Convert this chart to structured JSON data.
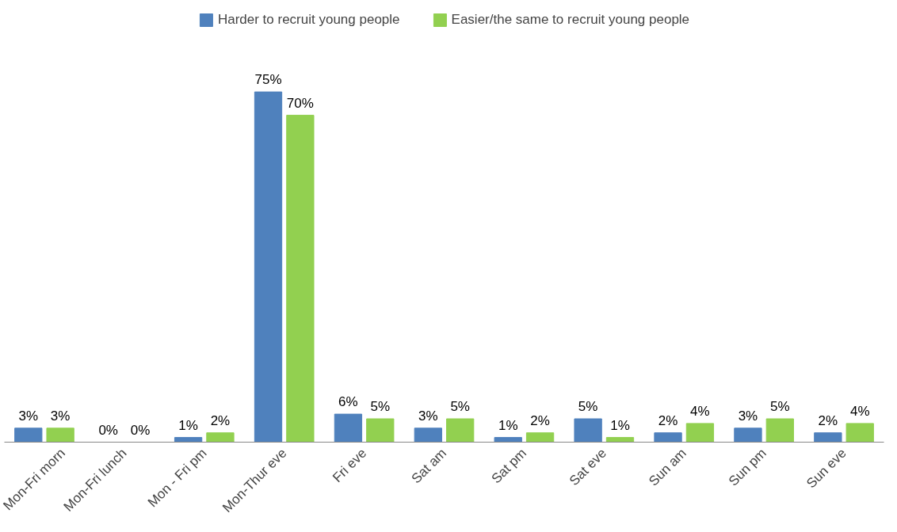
{
  "chart_data": {
    "type": "bar",
    "categories": [
      "Mon-Fri morn",
      "Mon-Fri lunch",
      "Mon - Fri pm",
      "Mon-Thur eve",
      "Fri eve",
      "Sat am",
      "Sat pm",
      "Sat eve",
      "Sun am",
      "Sun pm",
      "Sun eve"
    ],
    "series": [
      {
        "name": "Harder to recruit young people",
        "color": "#4f81bd",
        "values": [
          3,
          0,
          1,
          75,
          6,
          3,
          1,
          5,
          2,
          3,
          2
        ],
        "value_labels": [
          "3%",
          "0%",
          "1%",
          "75%",
          "6%",
          "3%",
          "1%",
          "5%",
          "2%",
          "3%",
          "2%"
        ]
      },
      {
        "name": "Easier/the same to recruit young people",
        "color": "#92d050",
        "values": [
          3,
          0,
          2,
          70,
          5,
          5,
          2,
          1,
          4,
          5,
          4
        ],
        "value_labels": [
          "3%",
          "0%",
          "2%",
          "70%",
          "5%",
          "5%",
          "2%",
          "1%",
          "4%",
          "5%",
          "4%"
        ]
      }
    ],
    "legend": "top",
    "grid": false
  }
}
